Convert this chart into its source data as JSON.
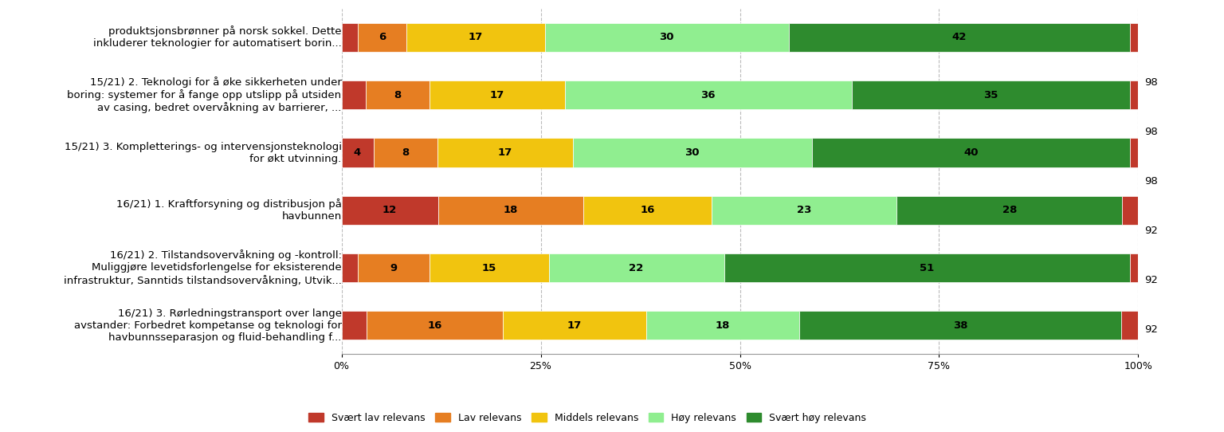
{
  "categories": [
    "produktsjonsbrønner på norsk sokkel. Dette\ninkluderer teknologier for automatisert borin...",
    "15/21) 2. Teknologi for å øke sikkerheten under\nboring: systemer for å fange opp utslipp på utsiden\nav casing, bedret overvåkning av barrierer, ...",
    "15/21) 3. Kompletterings- og intervensjonsteknologi\nfor økt utvinning.",
    "16/21) 1. Kraftforsyning og distribusjon på\nhavbunnen",
    "16/21) 2. Tilstandsovervåkning og -kontroll:\nMuliggjøre levetidsforlengelse for eksisterende\ninfrastruktur, Sanntids tilstandsovervåkning, Utvik...",
    "16/21) 3. Rørledningstransport over lange\navstander: Forbedret kompetanse og teknologi for\nhavbunnsseparasjon og fluid-behandling f..."
  ],
  "n_values": [
    98,
    98,
    98,
    92,
    92,
    92
  ],
  "data": [
    [
      2,
      6,
      17,
      30,
      42,
      1
    ],
    [
      3,
      8,
      17,
      36,
      35,
      1
    ],
    [
      4,
      8,
      17,
      30,
      40,
      1
    ],
    [
      12,
      18,
      16,
      23,
      28,
      2
    ],
    [
      2,
      9,
      15,
      22,
      51,
      1
    ],
    [
      3,
      16,
      17,
      18,
      38,
      2
    ]
  ],
  "colors": [
    "#c0392b",
    "#e67e22",
    "#f1c40f",
    "#90ee90",
    "#2e8b2e",
    "#c0392b"
  ],
  "legend_labels": [
    "Svært lav relevans",
    "Lav relevans",
    "Middels relevans",
    "Høy relevans",
    "Svært høy relevans"
  ],
  "legend_colors": [
    "#c0392b",
    "#e67e22",
    "#f1c40f",
    "#90ee90",
    "#2e8b2e"
  ],
  "bar_height": 0.5,
  "background_color": "#ffffff",
  "grid_color": "#bbbbbb",
  "text_fontsize": 9.5,
  "bar_fontsize": 9.5,
  "n_fontsize": 9.5
}
